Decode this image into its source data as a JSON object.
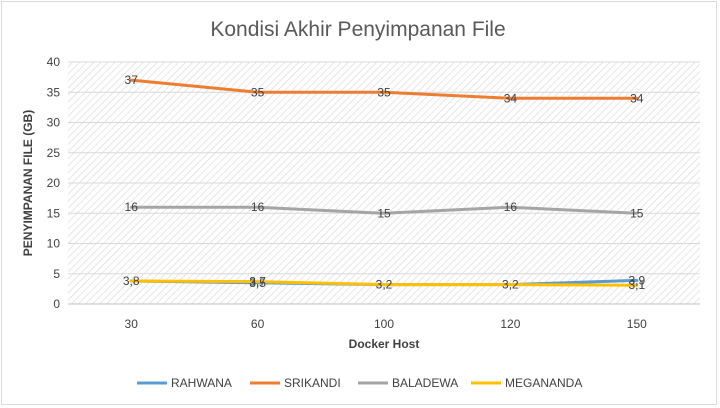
{
  "chart_data": {
    "type": "line",
    "title": "Kondisi Akhir Penyimpanan File",
    "xlabel": "Docker Host",
    "ylabel": "PENYIMPANAN FILE (GB)",
    "categories": [
      "30",
      "60",
      "100",
      "120",
      "150"
    ],
    "ylim": [
      0,
      40
    ],
    "yticks": [
      0,
      5,
      10,
      15,
      20,
      25,
      30,
      35,
      40
    ],
    "grid": true,
    "legend_position": "bottom",
    "series": [
      {
        "name": "RAHWANA",
        "color": "#5b9bd5",
        "values": [
          3.8,
          3.5,
          3.2,
          3.2,
          3.9
        ],
        "labels": [
          "",
          "3,5",
          "",
          "",
          "3,9"
        ]
      },
      {
        "name": "SRIKANDI",
        "color": "#ed7d31",
        "values": [
          37,
          35,
          35,
          34,
          34
        ],
        "labels": [
          "37",
          "35",
          "35",
          "34",
          "34"
        ]
      },
      {
        "name": "BALADEWA",
        "color": "#a5a5a5",
        "values": [
          16,
          16,
          15,
          16,
          15
        ],
        "labels": [
          "16",
          "16",
          "15",
          "16",
          "15"
        ]
      },
      {
        "name": "MEGANANDA",
        "color": "#ffc000",
        "values": [
          3.8,
          3.7,
          3.2,
          3.2,
          3.1
        ],
        "labels": [
          "3,8",
          "3,7",
          "3,2",
          "3,2",
          "3,1"
        ]
      }
    ]
  }
}
